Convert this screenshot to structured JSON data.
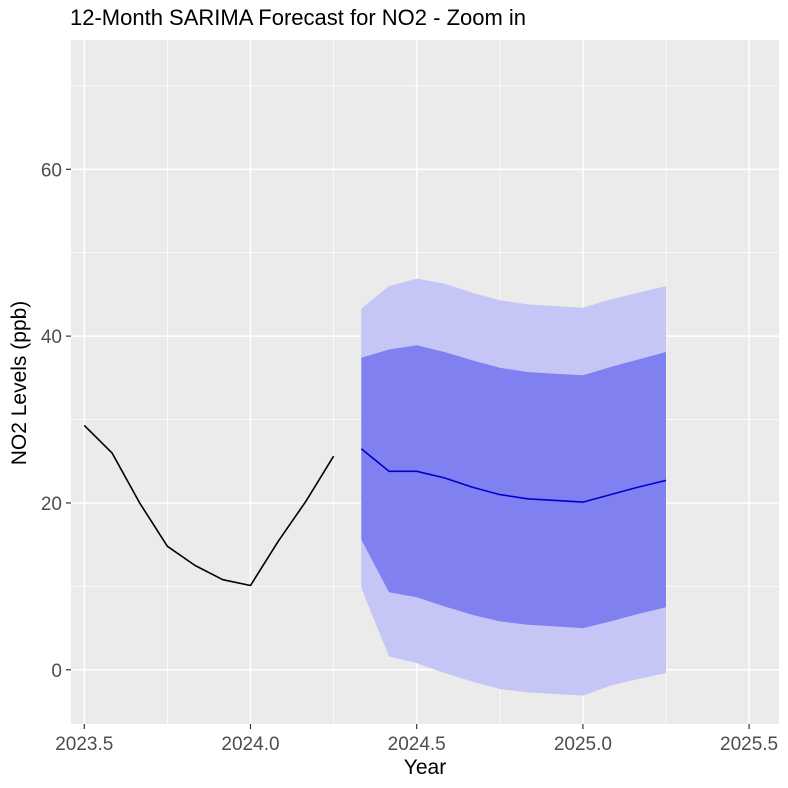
{
  "chart_data": {
    "type": "line",
    "title": "12-Month SARIMA Forecast for NO2 - Zoom in",
    "xlabel": "Year",
    "ylabel": "NO2 Levels (ppb)",
    "xlim": [
      2023.46,
      2025.59
    ],
    "ylim": [
      -6.5,
      75.5
    ],
    "x_ticks": [
      2023.5,
      2024.0,
      2024.5,
      2025.0,
      2025.5
    ],
    "x_tick_labels": [
      "2023.5",
      "2024.0",
      "2024.5",
      "2025.0",
      "2025.5"
    ],
    "y_ticks": [
      0,
      20,
      40,
      60
    ],
    "y_tick_labels": [
      "0",
      "20",
      "40",
      "60"
    ],
    "grid": true,
    "colors": {
      "panel": "#ebebeb",
      "grid_major": "#ffffff",
      "observed": "#000000",
      "forecast": "#0000cd",
      "band_80": "#8080f0",
      "band_95": "#c5c5f6"
    },
    "observed": {
      "x": [
        2023.5,
        2023.5833,
        2023.6667,
        2023.75,
        2023.8333,
        2023.9167,
        2024.0,
        2024.0833,
        2024.1667,
        2024.25
      ],
      "y": [
        29.3,
        26.0,
        20.0,
        14.8,
        12.5,
        10.8,
        10.1,
        15.4,
        20.2,
        25.6
      ]
    },
    "forecast": {
      "x": [
        2024.3333,
        2024.4167,
        2024.5,
        2024.5833,
        2024.6667,
        2024.75,
        2024.8333,
        2024.9167,
        2025.0,
        2025.0833,
        2025.1667,
        2025.25
      ],
      "mean": [
        26.5,
        23.8,
        23.8,
        23.0,
        21.9,
        21.0,
        20.5,
        20.3,
        20.1,
        21.0,
        21.9,
        22.7
      ],
      "lo80": [
        15.6,
        9.3,
        8.7,
        7.6,
        6.6,
        5.8,
        5.4,
        5.2,
        5.0,
        5.8,
        6.7,
        7.5
      ],
      "hi80": [
        37.4,
        38.4,
        38.9,
        38.1,
        37.1,
        36.2,
        35.7,
        35.5,
        35.3,
        36.3,
        37.2,
        38.1
      ],
      "lo95": [
        9.8,
        1.6,
        0.8,
        -0.4,
        -1.4,
        -2.3,
        -2.7,
        -2.9,
        -3.1,
        -1.9,
        -1.1,
        -0.4
      ],
      "hi95": [
        43.3,
        46.0,
        46.9,
        46.3,
        45.2,
        44.3,
        43.8,
        43.6,
        43.4,
        44.4,
        45.2,
        46.0
      ]
    }
  }
}
